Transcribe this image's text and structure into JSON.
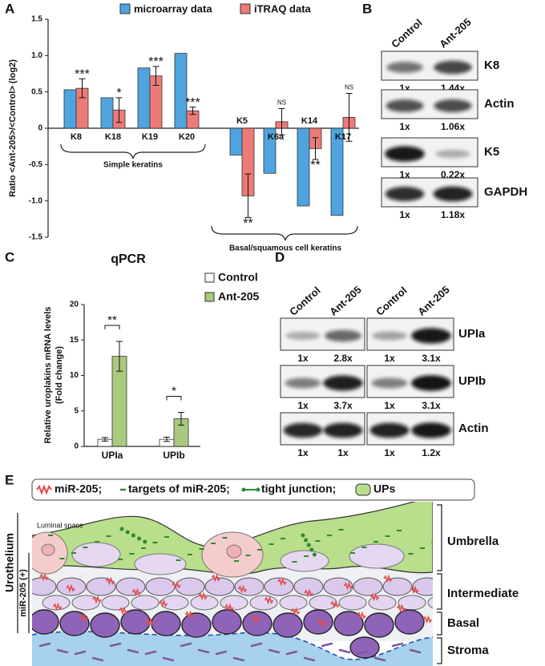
{
  "panel_labels": [
    "A",
    "B",
    "C",
    "D",
    "E"
  ],
  "chart_data": [
    {
      "type": "bar",
      "ylabel": "Ratio <Ant-205>/<Control> (log2)",
      "categories": [
        "K8",
        "K18",
        "K19",
        "K20",
        "K5",
        "K6a",
        "K14",
        "K17"
      ],
      "series": [
        {
          "name": "microarray data",
          "color": "#4fa4e0",
          "values": [
            0.53,
            0.42,
            0.83,
            1.03,
            -0.37,
            -0.62,
            -1.07,
            -1.2
          ]
        },
        {
          "name": "iTRAQ data",
          "color": "#ec7b78",
          "values": [
            0.55,
            0.25,
            0.72,
            0.24,
            -0.93,
            0.09,
            -0.28,
            0.15
          ],
          "errors": [
            0.13,
            0.17,
            0.13,
            0.05,
            0.3,
            0.18,
            0.15,
            0.33
          ]
        }
      ],
      "significance": [
        "***",
        "*",
        "***",
        "***",
        "**",
        "NS",
        "**",
        "NS"
      ],
      "annotations": [
        "Simple keratins",
        "Basal/squamous cell keratins"
      ],
      "ylim": [
        -1.5,
        1.5
      ],
      "yticks": [
        -1.5,
        {
          "value": -1,
          "label": "-1.0"
        },
        -0.5,
        0,
        0.5,
        {
          "value": 1,
          "label": "1.0"
        },
        1.5
      ]
    },
    {
      "type": "bar",
      "title": "qPCR",
      "ylabel": [
        "Relative uroplakins mRNA levels",
        "(Fold change)"
      ],
      "categories": [
        "UPIa",
        "UPIb"
      ],
      "series": [
        {
          "name": "Control",
          "color": "#ffffff",
          "values": [
            1,
            1
          ],
          "errors": [
            0.25,
            0.3
          ]
        },
        {
          "name": "Ant-205",
          "color": "#a9c97f",
          "values": [
            12.7,
            3.9
          ],
          "errors": [
            2.1,
            0.9
          ]
        }
      ],
      "significance": [
        "**",
        "*"
      ],
      "ylim": [
        0,
        20
      ],
      "yticks": [
        0,
        5,
        10,
        15,
        20
      ]
    }
  ],
  "blots": [
    {
      "columns": [
        "Control",
        "Ant-205"
      ],
      "rows": [
        {
          "label": "K8",
          "quantities": [
            "1x",
            "1.44x"
          ]
        },
        {
          "label": "Actin",
          "quantities": [
            "1x",
            "1.06x"
          ]
        },
        {
          "label": "K5",
          "quantities": [
            "1x",
            "0.22x"
          ]
        },
        {
          "label": "GAPDH",
          "quantities": [
            "1x",
            "1.18x"
          ]
        }
      ]
    },
    {
      "columns": [
        "Control",
        "Ant-205",
        "Control",
        "Ant-205"
      ],
      "rows": [
        {
          "label": "UPIa",
          "quantities": [
            "1x",
            "2.8x",
            "1x",
            "3.1x"
          ]
        },
        {
          "label": "UPIb",
          "quantities": [
            "1x",
            "3.7x",
            "1x",
            "3.1x"
          ]
        },
        {
          "label": "Actin",
          "quantities": [
            "1x",
            "1x",
            "1x",
            "1.2x"
          ]
        }
      ]
    }
  ],
  "diagram": {
    "legend": [
      "miR-205;",
      "targets of miR-205;",
      "tight junction;",
      "UPs"
    ],
    "luminal_label": "Luminal space",
    "layers": [
      "Umbrella",
      "Intermediate",
      "Basal",
      "Stroma"
    ],
    "side_labels": [
      "Urothelium",
      "miR-205 (+)"
    ]
  }
}
